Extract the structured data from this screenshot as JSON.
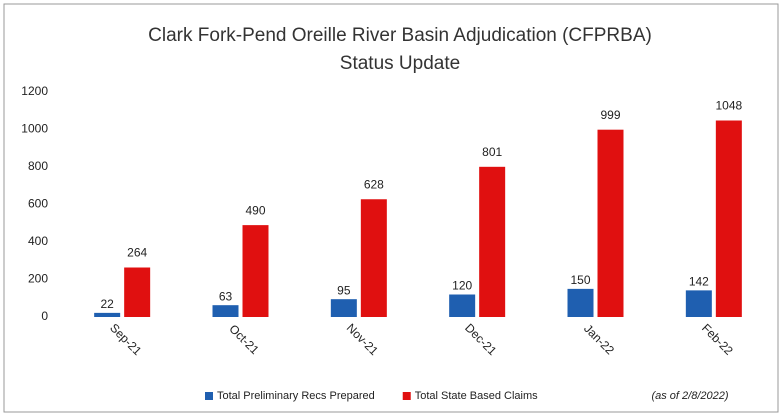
{
  "chart_data": {
    "type": "bar",
    "title": [
      "Clark Fork-Pend Oreille River Basin Adjudication (CFPRBA)",
      "Status Update"
    ],
    "categories": [
      "Sep-21",
      "Oct-21",
      "Nov-21",
      "Dec-21",
      "Jan-22",
      "Feb-22"
    ],
    "series": [
      {
        "name": "Total Preliminary Recs Prepared",
        "color": "#1f5fb0",
        "values": [
          22,
          63,
          95,
          120,
          150,
          142
        ]
      },
      {
        "name": "Total State Based Claims",
        "color": "#e01010",
        "values": [
          264,
          490,
          628,
          801,
          999,
          1048
        ]
      }
    ],
    "annotation": "(as of 2/8/2022)",
    "ylim": [
      0,
      1200
    ],
    "yticks": [
      0,
      200,
      400,
      600,
      800,
      1000,
      1200
    ],
    "grid": false,
    "legend": "bottom"
  }
}
